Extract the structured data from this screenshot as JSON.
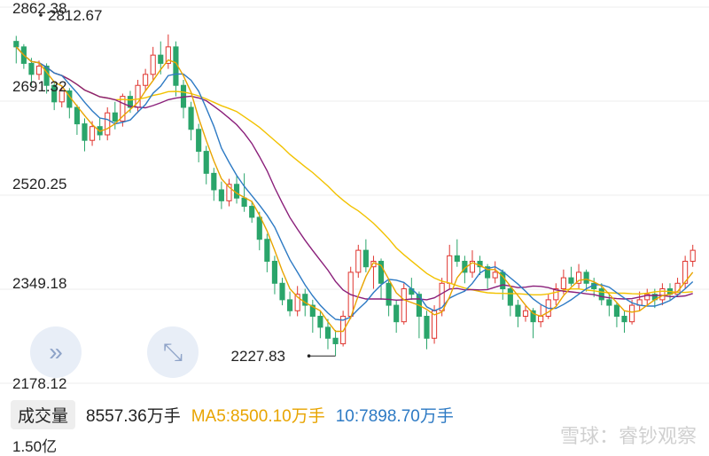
{
  "chart_data": {
    "type": "candlestick",
    "y_ticks": [
      "2862.38",
      "2691.32",
      "2520.25",
      "2349.18",
      "2178.12"
    ],
    "ylim": [
      2178.12,
      2862.38
    ],
    "annotations": {
      "high": {
        "label": "2812.67",
        "value": 2812.67
      },
      "low": {
        "label": "2227.83",
        "value": 2227.83
      }
    },
    "ma_colors": {
      "ma5": "#e8a400",
      "ma10": "#2d7ac4",
      "ma20": "#8a1f7a",
      "ma60": "#f2c200"
    },
    "candles": [
      [
        2800,
        2790,
        2810,
        2760
      ],
      [
        2790,
        2760,
        2795,
        2750
      ],
      [
        2760,
        2740,
        2770,
        2720
      ],
      [
        2740,
        2755,
        2765,
        2730
      ],
      [
        2755,
        2720,
        2760,
        2705
      ],
      [
        2720,
        2690,
        2725,
        2675
      ],
      [
        2690,
        2710,
        2720,
        2680
      ],
      [
        2710,
        2680,
        2715,
        2660
      ],
      [
        2680,
        2650,
        2685,
        2630
      ],
      [
        2650,
        2620,
        2660,
        2600
      ],
      [
        2620,
        2645,
        2655,
        2610
      ],
      [
        2645,
        2630,
        2660,
        2620
      ],
      [
        2630,
        2670,
        2680,
        2620
      ],
      [
        2670,
        2655,
        2690,
        2640
      ],
      [
        2655,
        2700,
        2705,
        2645
      ],
      [
        2700,
        2680,
        2710,
        2670
      ],
      [
        2680,
        2720,
        2730,
        2670
      ],
      [
        2720,
        2740,
        2750,
        2710
      ],
      [
        2740,
        2775,
        2790,
        2730
      ],
      [
        2775,
        2760,
        2800,
        2740
      ],
      [
        2760,
        2790,
        2812.67,
        2750
      ],
      [
        2790,
        2720,
        2800,
        2700
      ],
      [
        2720,
        2680,
        2730,
        2660
      ],
      [
        2680,
        2640,
        2690,
        2620
      ],
      [
        2640,
        2600,
        2650,
        2580
      ],
      [
        2600,
        2560,
        2610,
        2540
      ],
      [
        2560,
        2530,
        2570,
        2510
      ],
      [
        2530,
        2510,
        2545,
        2495
      ],
      [
        2510,
        2540,
        2550,
        2500
      ],
      [
        2540,
        2515,
        2555,
        2505
      ],
      [
        2515,
        2500,
        2560,
        2490
      ],
      [
        2500,
        2480,
        2510,
        2470
      ],
      [
        2480,
        2440,
        2490,
        2420
      ],
      [
        2440,
        2400,
        2450,
        2380
      ],
      [
        2400,
        2360,
        2410,
        2340
      ],
      [
        2360,
        2330,
        2370,
        2320
      ],
      [
        2330,
        2310,
        2345,
        2300
      ],
      [
        2310,
        2340,
        2355,
        2300
      ],
      [
        2340,
        2320,
        2350,
        2300
      ],
      [
        2320,
        2300,
        2330,
        2270
      ],
      [
        2300,
        2280,
        2310,
        2260
      ],
      [
        2280,
        2260,
        2295,
        2240
      ],
      [
        2260,
        2250,
        2275,
        2227.83
      ],
      [
        2250,
        2300,
        2310,
        2245
      ],
      [
        2300,
        2380,
        2390,
        2295
      ],
      [
        2380,
        2420,
        2430,
        2370
      ],
      [
        2420,
        2390,
        2440,
        2380
      ],
      [
        2390,
        2400,
        2410,
        2350
      ],
      [
        2400,
        2360,
        2405,
        2330
      ],
      [
        2360,
        2320,
        2365,
        2300
      ],
      [
        2320,
        2290,
        2330,
        2270
      ],
      [
        2290,
        2350,
        2360,
        2285
      ],
      [
        2350,
        2340,
        2370,
        2330
      ],
      [
        2340,
        2300,
        2345,
        2260
      ],
      [
        2300,
        2260,
        2310,
        2240
      ],
      [
        2260,
        2310,
        2320,
        2250
      ],
      [
        2310,
        2360,
        2370,
        2300
      ],
      [
        2360,
        2410,
        2430,
        2350
      ],
      [
        2410,
        2400,
        2440,
        2390
      ],
      [
        2400,
        2380,
        2410,
        2360
      ],
      [
        2380,
        2400,
        2420,
        2370
      ],
      [
        2400,
        2390,
        2410,
        2375
      ],
      [
        2390,
        2370,
        2395,
        2350
      ],
      [
        2370,
        2380,
        2400,
        2360
      ],
      [
        2380,
        2350,
        2385,
        2330
      ],
      [
        2350,
        2320,
        2355,
        2300
      ],
      [
        2320,
        2300,
        2330,
        2280
      ],
      [
        2300,
        2310,
        2320,
        2290
      ],
      [
        2310,
        2290,
        2315,
        2260
      ],
      [
        2290,
        2300,
        2320,
        2280
      ],
      [
        2300,
        2330,
        2340,
        2295
      ],
      [
        2330,
        2350,
        2360,
        2320
      ],
      [
        2350,
        2370,
        2385,
        2340
      ],
      [
        2370,
        2360,
        2390,
        2355
      ],
      [
        2360,
        2380,
        2395,
        2350
      ],
      [
        2380,
        2360,
        2385,
        2345
      ],
      [
        2360,
        2350,
        2370,
        2335
      ],
      [
        2350,
        2330,
        2360,
        2320
      ],
      [
        2330,
        2320,
        2340,
        2300
      ],
      [
        2320,
        2300,
        2325,
        2280
      ],
      [
        2300,
        2290,
        2310,
        2270
      ],
      [
        2290,
        2320,
        2330,
        2285
      ],
      [
        2320,
        2330,
        2345,
        2310
      ],
      [
        2330,
        2340,
        2350,
        2320
      ],
      [
        2340,
        2330,
        2350,
        2315
      ],
      [
        2330,
        2350,
        2360,
        2320
      ],
      [
        2350,
        2340,
        2360,
        2330
      ],
      [
        2340,
        2360,
        2370,
        2335
      ],
      [
        2360,
        2400,
        2410,
        2350
      ],
      [
        2400,
        2420,
        2430,
        2390
      ]
    ]
  },
  "volume_panel": {
    "title": "成交量",
    "value": "8557.36万手",
    "ma5": "MA5:8500.10万手",
    "ma10": "10:7898.70万手",
    "axis_label": "1.50亿"
  },
  "watermark": "雪球：睿钞观察",
  "controls": {
    "expand_icon": "»",
    "fullscreen_icon": "⤡"
  }
}
